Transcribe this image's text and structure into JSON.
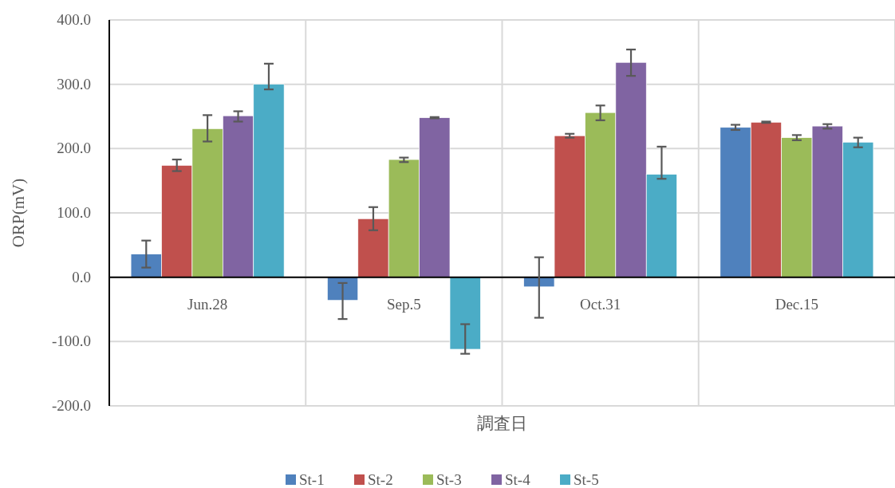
{
  "chart_data": {
    "type": "bar",
    "xlabel": "調査日",
    "ylabel": "ORP(mV)",
    "categories": [
      "Jun.28",
      "Sep.5",
      "Oct.31",
      "Dec.15"
    ],
    "series": [
      {
        "name": "St-1",
        "color": "#4f81bd",
        "values": [
          36,
          -36,
          -15,
          233
        ],
        "errors": [
          [
            15,
            57
          ],
          [
            -65,
            -9
          ],
          [
            -63,
            31
          ],
          [
            229,
            237
          ]
        ]
      },
      {
        "name": "St-2",
        "color": "#c0504d",
        "values": [
          174,
          91,
          220,
          241
        ],
        "errors": [
          [
            165,
            183
          ],
          [
            73,
            109
          ],
          [
            217,
            223
          ],
          [
            240,
            242
          ]
        ]
      },
      {
        "name": "St-3",
        "color": "#9bbb59",
        "values": [
          231,
          183,
          256,
          217
        ],
        "errors": [
          [
            211,
            252
          ],
          [
            179,
            186
          ],
          [
            244,
            267
          ],
          [
            213,
            221
          ]
        ]
      },
      {
        "name": "St-4",
        "color": "#8064a2",
        "values": [
          251,
          248,
          334,
          235
        ],
        "errors": [
          [
            242,
            258
          ],
          [
            247,
            249
          ],
          [
            313,
            354
          ],
          [
            231,
            238
          ]
        ]
      },
      {
        "name": "St-5",
        "color": "#4bacc6",
        "values": [
          300,
          -112,
          160,
          210
        ],
        "errors": [
          [
            292,
            332
          ],
          [
            -119,
            -73
          ],
          [
            153,
            203
          ],
          [
            202,
            217
          ]
        ]
      }
    ],
    "ylim": [
      -200,
      400
    ],
    "yticks": [
      {
        "value": -200,
        "label": "-200.0"
      },
      {
        "value": -100,
        "label": "-100.0"
      },
      {
        "value": 0,
        "label": "0.0"
      },
      {
        "value": 100,
        "label": "100.0"
      },
      {
        "value": 200,
        "label": "200.0"
      },
      {
        "value": 300,
        "label": "300.0"
      },
      {
        "value": 400,
        "label": "400.0"
      }
    ],
    "grid": true,
    "legend": "bottom"
  }
}
